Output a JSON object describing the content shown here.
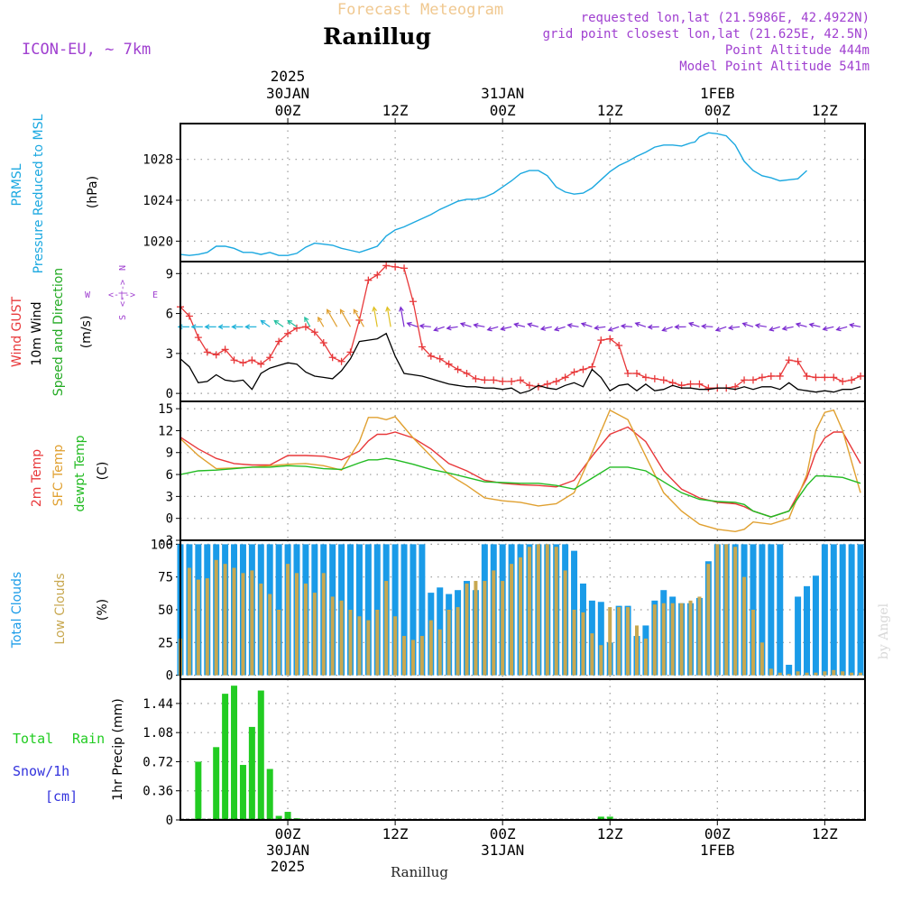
{
  "header": {
    "product": "Forecast Meteogram",
    "station": "Ranillug",
    "model": "ICON-EU, ~ 7km",
    "requested": "requested lon,lat (21.5986E, 42.4922N)",
    "gridpoint": "grid point closest lon,lat (21.625E, 42.5N)",
    "point_alt": "Point Altitude 444m",
    "model_alt": "Model Point Altitude 541m",
    "footer_station": "Ranillug",
    "watermark": "by Angel"
  },
  "time_axis": {
    "top": [
      {
        "lines": [
          "2025",
          "30JAN",
          "00Z"
        ],
        "hour": 12
      },
      {
        "lines": [
          "12Z"
        ],
        "hour": 24
      },
      {
        "lines": [
          "31JAN",
          "00Z"
        ],
        "hour": 36
      },
      {
        "lines": [
          "12Z"
        ],
        "hour": 48
      },
      {
        "lines": [
          "1FEB",
          "00Z"
        ],
        "hour": 60
      },
      {
        "lines": [
          "12Z"
        ],
        "hour": 72
      }
    ],
    "bottom": [
      {
        "lines": [
          "00Z",
          "30JAN",
          "2025"
        ],
        "hour": 12
      },
      {
        "lines": [
          "12Z"
        ],
        "hour": 24
      },
      {
        "lines": [
          "00Z",
          "31JAN"
        ],
        "hour": 36
      },
      {
        "lines": [
          "12Z"
        ],
        "hour": 48
      },
      {
        "lines": [
          "00Z",
          "1FEB"
        ],
        "hour": 60
      },
      {
        "lines": [
          "12Z"
        ],
        "hour": 72
      }
    ]
  },
  "compass": {
    "n": "N",
    "s": "S",
    "w": "W",
    "e": "E",
    "arrows": "<-|->"
  },
  "colors": {
    "pressure": "#1ba8e0",
    "gust": "#e8383a",
    "wind": "#000000",
    "winddir": "#22aa22",
    "temp2m": "#e8383a",
    "sfc": "#e0a030",
    "dewpt": "#22bb22",
    "totalcloud": "#1a9be8",
    "lowcloud": "#c8a850",
    "rain": "#22cc22",
    "snow": "#3333dd",
    "title": "#f0c890",
    "meta": "#a040d0"
  },
  "chart_data": [
    {
      "type": "line",
      "panel": "pressure",
      "ylabel_lines": [
        "PRMSL",
        "Pressure Reduced to MSL"
      ],
      "unit": "(hPa)",
      "ylim": [
        1018,
        1031.5
      ],
      "yticks": [
        "1020",
        "1024",
        "1028"
      ],
      "x_hours": [
        0,
        1,
        2,
        3,
        4,
        5,
        6,
        7,
        8,
        9,
        10,
        11,
        12,
        13,
        14,
        15,
        16,
        17,
        18,
        19,
        20,
        21,
        22,
        23,
        24,
        25,
        26,
        27,
        28,
        29,
        30,
        31,
        32,
        33,
        34,
        35,
        36,
        37,
        38,
        39,
        40,
        41,
        42,
        43,
        44,
        45,
        46,
        47,
        48,
        49,
        50,
        51,
        52,
        53,
        54,
        55,
        56,
        57,
        57.5,
        58,
        59,
        60,
        61,
        62,
        63,
        64,
        65,
        66,
        67,
        68,
        69,
        70,
        71,
        72,
        73,
        74,
        75,
        76
      ],
      "series": [
        {
          "values": [
            1018.7,
            1018.6,
            1018.7,
            1018.9,
            1019.5,
            1019.5,
            1019.3,
            1018.9,
            1018.9,
            1018.7,
            1018.9,
            1018.6,
            1018.6,
            1018.8,
            1019.4,
            1019.8,
            1019.7,
            1019.6,
            1019.3,
            1019.1,
            1018.9,
            1019.2,
            1019.5,
            1020.5,
            1021.1,
            1021.4,
            1021.8,
            1022.2,
            1022.6,
            1023.1,
            1023.5,
            1023.9,
            1024.1,
            1024.1,
            1024.3,
            1024.7,
            1025.3,
            1025.9,
            1026.6,
            1026.9,
            1026.9,
            1026.4,
            1025.3,
            1024.8,
            1024.6,
            1024.7,
            1025.2,
            1026.0,
            1026.8,
            1027.4,
            1027.8,
            1028.3,
            1028.7,
            1029.2,
            1029.4,
            1029.4,
            1029.3,
            1029.6,
            1029.7,
            1030.2,
            1030.6,
            1030.5,
            1030.3,
            1029.4,
            1027.8,
            1026.9,
            1026.4,
            1026.2,
            1025.9,
            1026.0,
            1026.1,
            1026.9
          ]
        }
      ]
    },
    {
      "type": "line",
      "panel": "wind",
      "ylabel_lines": [
        "Wind GUST",
        "10m Wind",
        "Speed and Direction"
      ],
      "unit": "(m/s)",
      "ylim": [
        -0.6,
        9.9
      ],
      "yticks": [
        "0",
        "3",
        "6",
        "9"
      ],
      "x_hours": [
        0,
        1,
        2,
        3,
        4,
        5,
        6,
        7,
        8,
        9,
        10,
        11,
        12,
        13,
        14,
        15,
        16,
        17,
        18,
        19,
        20,
        21,
        22,
        23,
        24,
        25,
        26,
        27,
        28,
        29,
        30,
        31,
        32,
        33,
        34,
        35,
        36,
        37,
        38,
        39,
        40,
        41,
        42,
        43,
        44,
        45,
        46,
        47,
        48,
        49,
        50,
        51,
        52,
        53,
        54,
        55,
        56,
        57,
        58,
        59,
        60,
        61,
        62,
        63,
        64,
        65,
        66,
        67,
        68,
        69,
        70,
        71,
        72,
        73,
        74,
        75,
        76
      ],
      "series": [
        {
          "name": "gust",
          "values": [
            6.5,
            5.8,
            4.2,
            3.1,
            2.9,
            3.3,
            2.5,
            2.3,
            2.5,
            2.2,
            2.7,
            3.9,
            4.5,
            4.9,
            5.0,
            4.6,
            3.8,
            2.7,
            2.4,
            3.1,
            5.5,
            8.5,
            8.9,
            9.6,
            9.5,
            9.4,
            6.9,
            3.5,
            2.8,
            2.6,
            2.2,
            1.8,
            1.5,
            1.1,
            1.0,
            1.0,
            0.9,
            0.9,
            1.0,
            0.6,
            0.5,
            0.7,
            0.9,
            1.2,
            1.6,
            1.8,
            2.0,
            4.0,
            4.1,
            3.6,
            1.5,
            1.5,
            1.2,
            1.1,
            1.0,
            0.8,
            0.6,
            0.7,
            0.7,
            0.4,
            0.4,
            0.4,
            0.5,
            1.0,
            1.0,
            1.2,
            1.3,
            1.3,
            2.5,
            2.4,
            1.3,
            1.2,
            1.2,
            1.2,
            0.9,
            1.0,
            1.3
          ]
        },
        {
          "name": "10m wind",
          "values": [
            2.6,
            2.0,
            0.8,
            0.9,
            1.4,
            1.0,
            0.9,
            1.0,
            0.3,
            1.5,
            1.9,
            2.1,
            2.3,
            2.2,
            1.6,
            1.3,
            1.2,
            1.1,
            1.7,
            2.6,
            3.9,
            4.0,
            4.1,
            4.5,
            2.8,
            1.5,
            1.4,
            1.3,
            1.1,
            0.9,
            0.7,
            0.6,
            0.5,
            0.5,
            0.4,
            0.4,
            0.3,
            0.4,
            0.0,
            0.2,
            0.6,
            0.4,
            0.3,
            0.6,
            0.8,
            0.5,
            1.8,
            1.2,
            0.2,
            0.6,
            0.7,
            0.2,
            0.7,
            0.2,
            0.3,
            0.6,
            0.4,
            0.4,
            0.3,
            0.3,
            0.4,
            0.4,
            0.3,
            0.5,
            0.3,
            0.5,
            0.5,
            0.3,
            0.8,
            0.3,
            0.2,
            0.1,
            0.2,
            0.1,
            0.3,
            0.3,
            0.5
          ]
        }
      ]
    },
    {
      "type": "line",
      "panel": "temperature",
      "ylabel_lines": [
        "2m Temp",
        "SFC Temp",
        "dewpt Temp"
      ],
      "unit": "(C)",
      "ylim": [
        -3,
        16
      ],
      "yticks": [
        "-3",
        "0",
        "3",
        "6",
        "9",
        "12",
        "15"
      ],
      "x_hours": [
        0,
        2,
        4,
        6,
        8,
        10,
        12,
        14,
        16,
        18,
        20,
        21,
        22,
        23,
        24,
        26,
        28,
        30,
        32,
        34,
        36,
        38,
        40,
        42,
        44,
        46,
        48,
        50,
        52,
        54,
        56,
        58,
        60,
        62,
        63,
        64,
        66,
        68,
        70,
        71,
        72,
        73,
        74,
        76
      ],
      "series": [
        {
          "name": "2m Temp",
          "values": [
            11.1,
            9.5,
            8.2,
            7.5,
            7.3,
            7.3,
            8.6,
            8.6,
            8.5,
            8.0,
            9.2,
            10.6,
            11.5,
            11.5,
            11.8,
            11.0,
            9.5,
            7.5,
            6.5,
            5.2,
            4.8,
            4.6,
            4.5,
            4.3,
            5.2,
            8.5,
            11.5,
            12.5,
            10.5,
            6.5,
            4.0,
            2.8,
            2.2,
            2.0,
            1.6,
            1.0,
            0.2,
            1.0,
            5.5,
            9.0,
            11.0,
            11.8,
            11.8,
            7.5
          ]
        },
        {
          "name": "SFC Temp",
          "values": [
            10.9,
            8.6,
            6.8,
            6.9,
            7.0,
            7.2,
            7.4,
            7.5,
            7.2,
            6.6,
            10.5,
            13.8,
            13.8,
            13.5,
            13.9,
            11.0,
            8.5,
            6.0,
            4.5,
            2.8,
            2.4,
            2.2,
            1.7,
            2.0,
            3.5,
            9.0,
            14.8,
            13.5,
            8.5,
            3.5,
            1.0,
            -0.8,
            -1.5,
            -1.8,
            -1.5,
            -0.5,
            -0.8,
            0.0,
            6.0,
            12.0,
            14.5,
            14.8,
            12.0,
            3.5
          ]
        },
        {
          "name": "dewpt Temp",
          "values": [
            6.0,
            6.5,
            6.6,
            6.8,
            7.0,
            7.0,
            7.2,
            7.1,
            6.8,
            6.7,
            7.6,
            8.0,
            8.0,
            8.2,
            8.0,
            7.4,
            6.7,
            6.2,
            5.6,
            5.0,
            4.9,
            4.8,
            4.8,
            4.5,
            4.0,
            5.5,
            7.0,
            7.0,
            6.5,
            5.0,
            3.5,
            2.6,
            2.3,
            2.2,
            1.9,
            1.0,
            0.2,
            1.0,
            4.5,
            5.8,
            5.8,
            5.7,
            5.6,
            4.8
          ]
        }
      ]
    },
    {
      "type": "bar",
      "panel": "clouds",
      "ylabel_lines": [
        "Total Clouds",
        "Low Clouds"
      ],
      "unit": "(%)",
      "ylim": [
        -3,
        103
      ],
      "yticks": [
        "0",
        "25",
        "50",
        "75",
        "100"
      ],
      "x_hours": [
        0,
        1,
        2,
        3,
        4,
        5,
        6,
        7,
        8,
        9,
        10,
        11,
        12,
        13,
        14,
        15,
        16,
        17,
        18,
        19,
        20,
        21,
        22,
        23,
        24,
        25,
        26,
        27,
        28,
        29,
        30,
        31,
        32,
        33,
        34,
        35,
        36,
        37,
        38,
        39,
        40,
        41,
        42,
        43,
        44,
        45,
        46,
        47,
        48,
        49,
        50,
        51,
        52,
        53,
        54,
        55,
        56,
        57,
        58,
        59,
        60,
        61,
        62,
        63,
        64,
        65,
        66,
        67,
        68,
        69,
        70,
        71,
        72,
        73,
        74,
        75,
        76
      ],
      "series": [
        {
          "name": "Total Clouds",
          "values": [
            100,
            100,
            100,
            100,
            100,
            100,
            100,
            100,
            100,
            100,
            100,
            100,
            100,
            100,
            100,
            100,
            100,
            100,
            100,
            100,
            100,
            100,
            100,
            100,
            100,
            100,
            100,
            100,
            63,
            67,
            62,
            65,
            72,
            65,
            100,
            100,
            100,
            100,
            100,
            100,
            100,
            100,
            100,
            100,
            95,
            70,
            57,
            56,
            25,
            53,
            53,
            30,
            38,
            57,
            65,
            60,
            55,
            55,
            59,
            87,
            100,
            100,
            100,
            100,
            100,
            100,
            100,
            100,
            8,
            60,
            68,
            76,
            100,
            100,
            100,
            100,
            100
          ]
        },
        {
          "name": "Low Clouds",
          "values": [
            28,
            82,
            73,
            74,
            88,
            85,
            82,
            78,
            80,
            70,
            62,
            50,
            85,
            78,
            70,
            63,
            78,
            60,
            57,
            50,
            45,
            42,
            50,
            72,
            45,
            30,
            27,
            30,
            42,
            35,
            50,
            52,
            70,
            72,
            72,
            80,
            72,
            85,
            90,
            98,
            100,
            100,
            98,
            80,
            50,
            48,
            32,
            23,
            52,
            52,
            52,
            38,
            28,
            54,
            55,
            55,
            55,
            57,
            60,
            85,
            100,
            100,
            98,
            75,
            50,
            25,
            5,
            2,
            1,
            3,
            2,
            2,
            3,
            4,
            3,
            2,
            2
          ]
        }
      ]
    },
    {
      "type": "bar",
      "panel": "precip",
      "ylabel": "1hr Precip (mm)",
      "legend": [
        "Total",
        "Rain",
        "Snow/1h",
        "[cm]"
      ],
      "ylim": [
        0,
        1.74
      ],
      "yticks": [
        "0",
        "0.36",
        "0.72",
        "1.08",
        "1.44"
      ],
      "x_hours": [
        2,
        4,
        5,
        6,
        7,
        8,
        9,
        10,
        11,
        12,
        13,
        47,
        48
      ],
      "series": [
        {
          "name": "Rain",
          "values": [
            0.72,
            0.9,
            1.56,
            1.66,
            0.68,
            1.15,
            1.6,
            0.63,
            0.05,
            0.1,
            0.02,
            0.04,
            0.04
          ]
        }
      ]
    }
  ]
}
